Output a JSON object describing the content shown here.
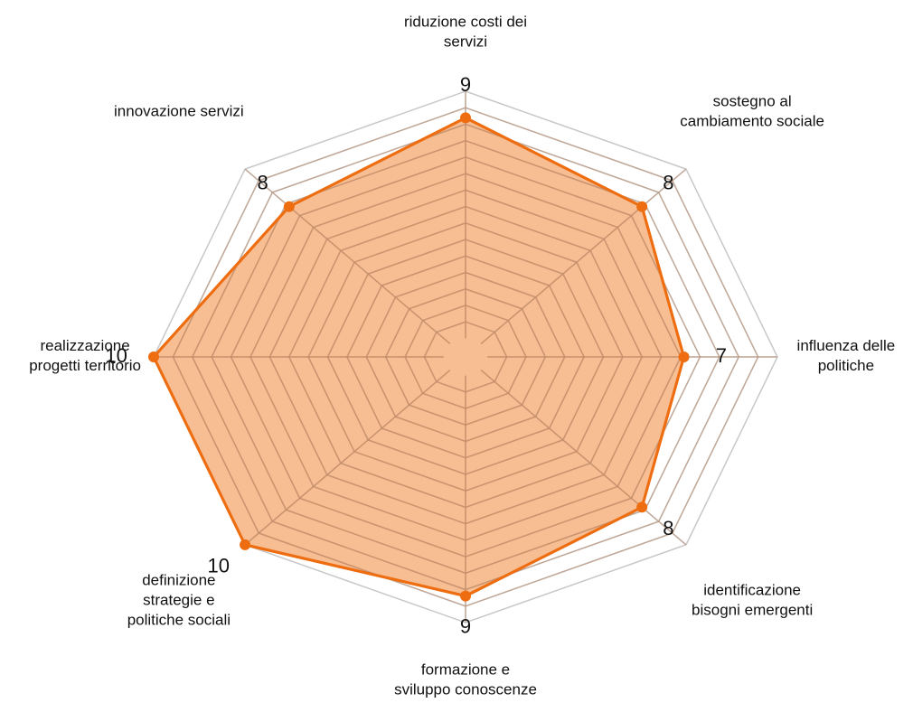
{
  "chart_data": {
    "type": "radar",
    "categories": [
      "riduzione costi dei servizi",
      "sostegno al cambiamento sociale",
      "influenza delle politiche",
      "identificazione bisogni emergenti",
      "formazione e sviluppo conoscenze",
      "definizione strategie e politiche sociali",
      "realizzazione progetti territorio",
      "innovazione servizi"
    ],
    "values": [
      9,
      8,
      7,
      8,
      9,
      10,
      10,
      8
    ],
    "color": "#ee6d10",
    "ylim": [
      0,
      10
    ]
  }
}
